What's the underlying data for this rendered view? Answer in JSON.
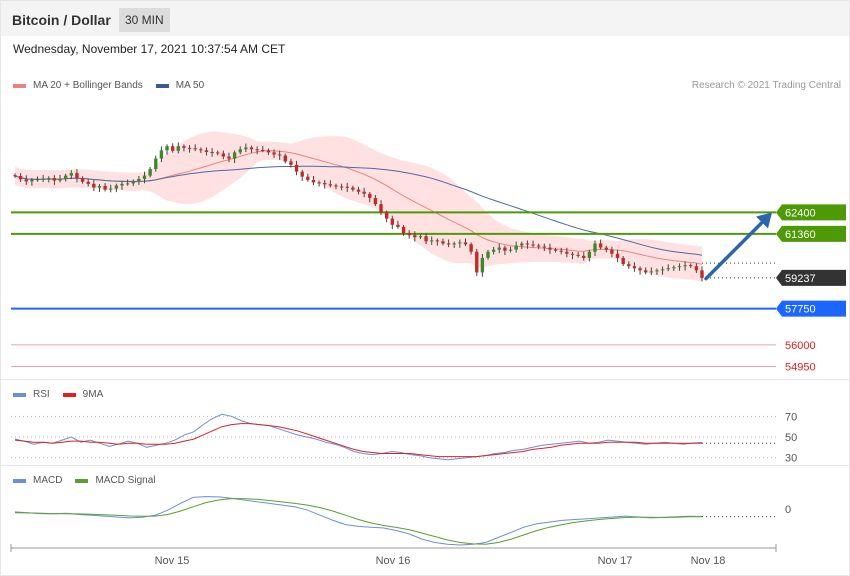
{
  "header": {
    "title": "Bitcoin / Dollar",
    "timeframe": "30 MIN"
  },
  "timestamp": "Wednesday, November 17, 2021 10:37:54 AM CET",
  "credit": "Research © 2021 Trading Central",
  "legends": {
    "main": [
      {
        "label": "MA 20 + Bollinger Bands",
        "color": "#f08080"
      },
      {
        "label": "MA 50",
        "color": "#3b5998"
      }
    ],
    "rsi": [
      {
        "label": "RSI",
        "color": "#6a8fd8"
      },
      {
        "label": "9MA",
        "color": "#e02020"
      }
    ],
    "macd": [
      {
        "label": "MACD",
        "color": "#6a8fd8"
      },
      {
        "label": "MACD Signal",
        "color": "#5aa02c"
      }
    ]
  },
  "colors": {
    "up": "#3a8a2a",
    "down": "#c62828",
    "band": "#ffe1e1",
    "resistance": "#4e9a06",
    "support": "#1a66ff",
    "far": "#f0a0a0",
    "price_tag": "#333333",
    "arrow": "#2e64a8"
  },
  "chart_data": [
    {
      "type": "candlestick",
      "title": "Bitcoin / Dollar",
      "timeframe": "30 MIN",
      "y_range": [
        54300,
        67350
      ],
      "x_ticks": [
        "Nov 15",
        "Nov 16",
        "Nov 17",
        "Nov 18"
      ],
      "levels": [
        {
          "value": 62400,
          "label": "62400",
          "kind": "resistance"
        },
        {
          "value": 61360,
          "label": "61360",
          "kind": "resistance"
        },
        {
          "value": 59237,
          "label": "59237",
          "kind": "last"
        },
        {
          "value": 57750,
          "label": "57750",
          "kind": "support"
        },
        {
          "value": 56000,
          "label": "56000",
          "kind": "far"
        },
        {
          "value": 54950,
          "label": "54950",
          "kind": "far"
        }
      ],
      "projection": {
        "from": 59200,
        "to": 62300
      },
      "closes": [
        64160,
        64000,
        63900,
        63970,
        64000,
        64020,
        64060,
        63940,
        64020,
        64180,
        64300,
        64060,
        63880,
        63780,
        63600,
        63680,
        63500,
        63550,
        63700,
        63780,
        63800,
        63900,
        64020,
        64180,
        64500,
        65000,
        65400,
        65600,
        65380,
        65600,
        65520,
        65500,
        65450,
        65400,
        65320,
        65300,
        65250,
        65100,
        65000,
        65300,
        65450,
        65540,
        65450,
        65420,
        65400,
        65300,
        65200,
        65150,
        64860,
        64700,
        64370,
        64130,
        63970,
        63850,
        63820,
        63760,
        63700,
        63650,
        63640,
        63600,
        63500,
        63400,
        63300,
        63100,
        62800,
        62400,
        62100,
        61800,
        61700,
        61400,
        61300,
        61200,
        61250,
        61000,
        61050,
        61000,
        60900,
        60850,
        60900,
        60950,
        60860,
        60500,
        59500,
        60200,
        60500,
        60600,
        60700,
        60550,
        60600,
        60800,
        60900,
        60850,
        60800,
        60750,
        60700,
        60600,
        60550,
        60500,
        60400,
        60350,
        60300,
        60200,
        60500,
        60900,
        60700,
        60600,
        60400,
        60200,
        59900,
        59800,
        59700,
        59600,
        59500,
        59550,
        59600,
        59650,
        59700,
        59750,
        59800,
        59850,
        59800,
        59600,
        59237
      ],
      "indicators": [
        "MA 20 + Bollinger Bands",
        "MA 50"
      ]
    },
    {
      "type": "line",
      "title": "RSI",
      "ylim": [
        20,
        80
      ],
      "y_ticks": [
        70,
        50,
        30
      ],
      "series": [
        {
          "name": "RSI",
          "values": [
            48,
            46,
            43,
            45,
            44,
            47,
            50,
            45,
            47,
            44,
            41,
            43,
            46,
            44,
            40,
            42,
            44,
            47,
            52,
            55,
            62,
            68,
            72,
            70,
            66,
            63,
            62,
            61,
            58,
            55,
            52,
            50,
            48,
            45,
            43,
            40,
            36,
            34,
            33,
            34,
            36,
            35,
            33,
            32,
            30,
            29,
            28,
            29,
            30,
            31,
            32,
            34,
            35,
            37,
            38,
            40,
            42,
            43,
            44,
            45,
            46,
            44,
            45,
            47,
            46,
            45,
            44,
            43,
            44,
            45,
            44,
            43,
            44,
            45
          ]
        },
        {
          "name": "9MA",
          "values": [
            47,
            46,
            45,
            45,
            44,
            45,
            46,
            46,
            45,
            45,
            44,
            43,
            44,
            44,
            43,
            43,
            43,
            44,
            46,
            48,
            52,
            56,
            60,
            62,
            63,
            63,
            62,
            61,
            60,
            58,
            56,
            53,
            50,
            47,
            44,
            41,
            38,
            36,
            35,
            34,
            34,
            34,
            34,
            33,
            32,
            31,
            31,
            31,
            31,
            31,
            32,
            33,
            34,
            35,
            36,
            38,
            39,
            40,
            42,
            43,
            44,
            44,
            44,
            45,
            45,
            45,
            45,
            44,
            44,
            44,
            44,
            44,
            44,
            44
          ]
        }
      ]
    },
    {
      "type": "line",
      "title": "MACD",
      "y_ticks": [
        0
      ],
      "series": [
        {
          "name": "MACD",
          "values": [
            30,
            25,
            20,
            18,
            22,
            15,
            10,
            5,
            0,
            -5,
            -2,
            10,
            40,
            80,
            115,
            120,
            118,
            110,
            100,
            90,
            80,
            70,
            60,
            40,
            10,
            -20,
            -45,
            -55,
            -60,
            -65,
            -80,
            -100,
            -130,
            -150,
            -160,
            -165,
            -160,
            -150,
            -120,
            -90,
            -60,
            -40,
            -30,
            -20,
            -15,
            -10,
            -5,
            0,
            5,
            0,
            -5,
            -2,
            2,
            4,
            3
          ]
        },
        {
          "name": "MACD Signal",
          "values": [
            25,
            24,
            22,
            20,
            19,
            18,
            16,
            13,
            10,
            6,
            4,
            5,
            15,
            35,
            60,
            85,
            100,
            108,
            108,
            104,
            97,
            89,
            80,
            70,
            55,
            35,
            10,
            -15,
            -35,
            -50,
            -62,
            -75,
            -95,
            -115,
            -135,
            -150,
            -158,
            -160,
            -150,
            -130,
            -105,
            -80,
            -60,
            -45,
            -32,
            -22,
            -14,
            -8,
            -3,
            -1,
            -2,
            -3,
            -1,
            1,
            2
          ]
        }
      ]
    }
  ]
}
